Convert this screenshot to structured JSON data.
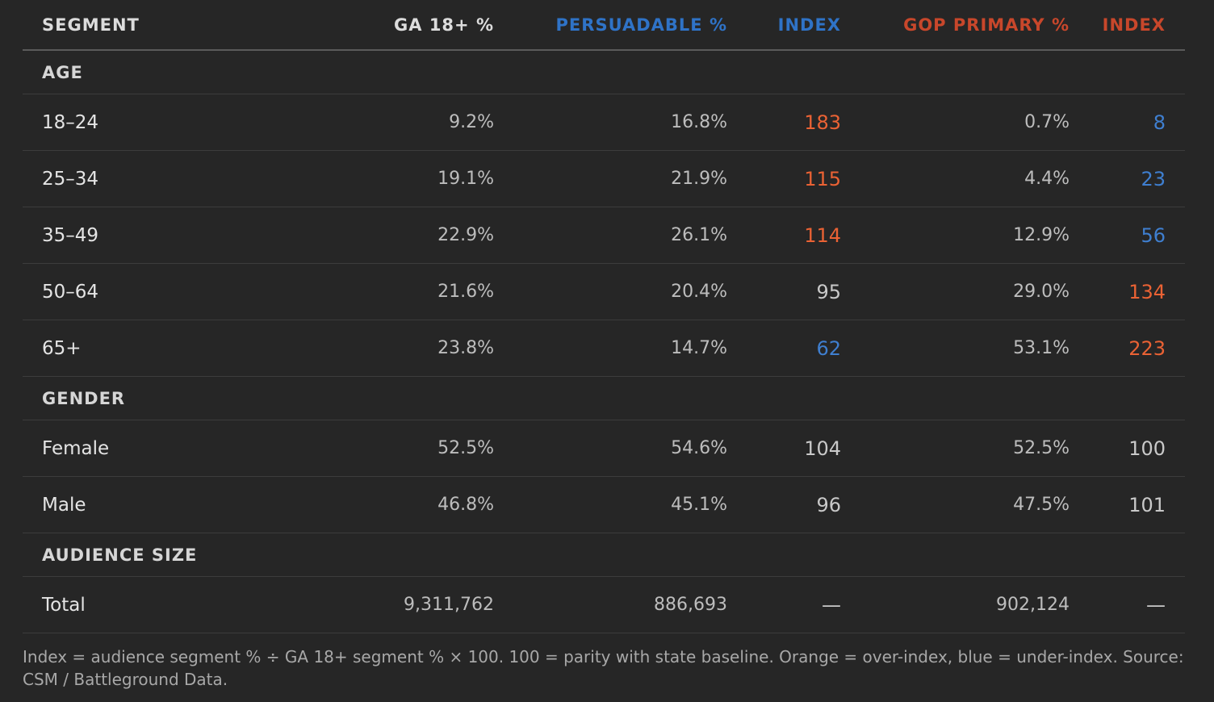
{
  "colors": {
    "background": "#262626",
    "persuadable_accent": "#2f73c7",
    "gop_accent": "#c8472b",
    "over_index": "#ea6234",
    "under_index": "#3f7fd0",
    "neutral_index": "#c9c9c9"
  },
  "chart_data": {
    "type": "table",
    "columns": [
      {
        "label": "SEGMENT",
        "accent": "neutral"
      },
      {
        "label": "GA 18+ %",
        "accent": "neutral"
      },
      {
        "label": "PERSUADABLE %",
        "accent": "persuadable"
      },
      {
        "label": "INDEX",
        "accent": "persuadable"
      },
      {
        "label": "GOP PRIMARY %",
        "accent": "gop"
      },
      {
        "label": "INDEX",
        "accent": "gop"
      }
    ],
    "groups": [
      {
        "name": "AGE",
        "rows": [
          {
            "segment": "18–24",
            "ga": "9.2%",
            "pers": "16.8%",
            "pers_index": "183",
            "pers_index_status": "over",
            "gop": "0.7%",
            "gop_index": "8",
            "gop_index_status": "under"
          },
          {
            "segment": "25–34",
            "ga": "19.1%",
            "pers": "21.9%",
            "pers_index": "115",
            "pers_index_status": "over",
            "gop": "4.4%",
            "gop_index": "23",
            "gop_index_status": "under"
          },
          {
            "segment": "35–49",
            "ga": "22.9%",
            "pers": "26.1%",
            "pers_index": "114",
            "pers_index_status": "over",
            "gop": "12.9%",
            "gop_index": "56",
            "gop_index_status": "under"
          },
          {
            "segment": "50–64",
            "ga": "21.6%",
            "pers": "20.4%",
            "pers_index": "95",
            "pers_index_status": "neutral",
            "gop": "29.0%",
            "gop_index": "134",
            "gop_index_status": "over"
          },
          {
            "segment": "65+",
            "ga": "23.8%",
            "pers": "14.7%",
            "pers_index": "62",
            "pers_index_status": "under",
            "gop": "53.1%",
            "gop_index": "223",
            "gop_index_status": "over"
          }
        ]
      },
      {
        "name": "GENDER",
        "rows": [
          {
            "segment": "Female",
            "ga": "52.5%",
            "pers": "54.6%",
            "pers_index": "104",
            "pers_index_status": "neutral",
            "gop": "52.5%",
            "gop_index": "100",
            "gop_index_status": "neutral"
          },
          {
            "segment": "Male",
            "ga": "46.8%",
            "pers": "45.1%",
            "pers_index": "96",
            "pers_index_status": "neutral",
            "gop": "47.5%",
            "gop_index": "101",
            "gop_index_status": "neutral"
          }
        ]
      },
      {
        "name": "AUDIENCE SIZE",
        "rows": [
          {
            "segment": "Total",
            "ga": "9,311,762",
            "pers": "886,693",
            "pers_index": "—",
            "pers_index_status": "neutral",
            "gop": "902,124",
            "gop_index": "—",
            "gop_index_status": "neutral"
          }
        ]
      }
    ]
  },
  "footnote": "Index = audience segment % ÷ GA 18+ segment % × 100. 100 = parity with state baseline. Orange = over-index, blue = under-index. Source: CSM / Battleground Data."
}
